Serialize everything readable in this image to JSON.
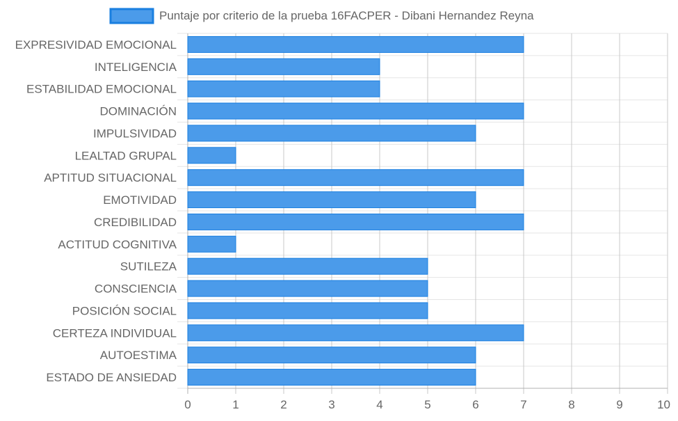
{
  "chart_data": {
    "type": "bar",
    "orientation": "horizontal",
    "categories": [
      "EXPRESIVIDAD EMOCIONAL",
      "INTELIGENCIA",
      "ESTABILIDAD EMOCIONAL",
      "DOMINACIÓN",
      "IMPULSIVIDAD",
      "LEALTAD GRUPAL",
      "APTITUD SITUACIONAL",
      "EMOTIVIDAD",
      "CREDIBILIDAD",
      "ACTITUD COGNITIVA",
      "SUTILEZA",
      "CONSCIENCIA",
      "POSICIÓN SOCIAL",
      "CERTEZA INDIVIDUAL",
      "AUTOESTIMA",
      "ESTADO DE ANSIEDAD"
    ],
    "series": [
      {
        "name": "Puntaje por criterio de la prueba 16FACPER - Dibani Hernandez Reyna",
        "values": [
          7,
          4,
          4,
          7,
          6,
          1,
          7,
          6,
          7,
          1,
          5,
          5,
          5,
          7,
          6,
          6
        ],
        "color": "#4b9bea",
        "border_color": "#1a7fe0"
      }
    ],
    "xlim": [
      0,
      10
    ],
    "x_ticks": [
      "0",
      "1",
      "2",
      "3",
      "4",
      "5",
      "6",
      "7",
      "8",
      "9",
      "10"
    ],
    "grid": true,
    "legend_position": "top-center",
    "title": "",
    "xlabel": "",
    "ylabel": ""
  }
}
